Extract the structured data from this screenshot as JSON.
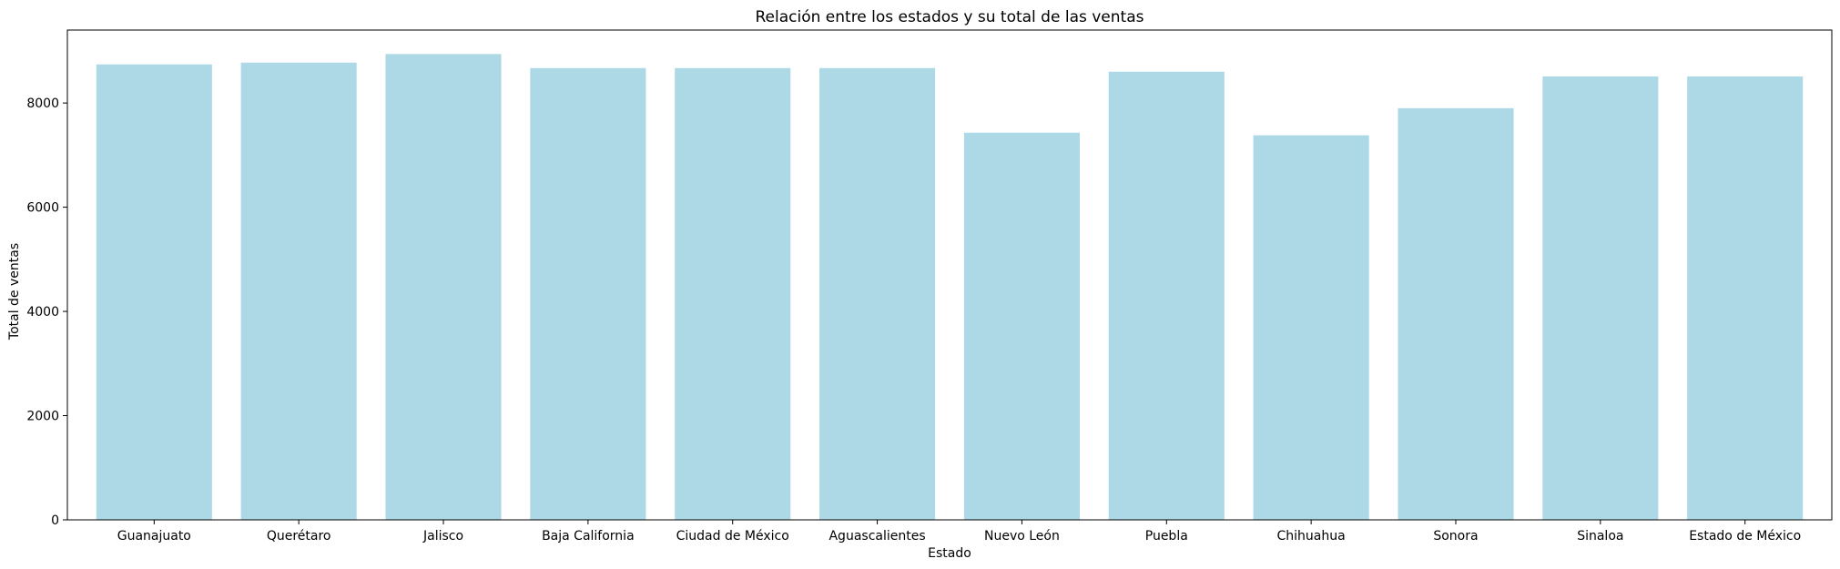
{
  "chart_data": {
    "type": "bar",
    "title": "Relación entre los estados y su total de las ventas",
    "xlabel": "Estado",
    "ylabel": "Total de ventas",
    "categories": [
      "Guanajuato",
      "Querétaro",
      "Jalisco",
      "Baja California",
      "Ciudad de México",
      "Aguascalientes",
      "Nuevo León",
      "Puebla",
      "Chihuahua",
      "Sonora",
      "Sinaloa",
      "Estado de México"
    ],
    "values": [
      8740,
      8775,
      8940,
      8670,
      8670,
      8670,
      7430,
      8600,
      7380,
      7900,
      8510,
      8510
    ],
    "ylim": [
      0,
      9400
    ],
    "yticks": [
      0,
      2000,
      4000,
      6000,
      8000
    ],
    "bar_color": "#add8e6",
    "grid": false,
    "legend": "none"
  }
}
